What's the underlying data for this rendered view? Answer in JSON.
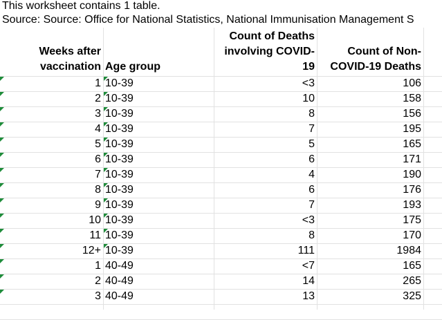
{
  "note": "This worksheet contains 1 table.",
  "source": "Source: Source: Office for National Statistics, National Immunisation Management S",
  "table": {
    "columns": [
      "Weeks after vaccination",
      "Age group",
      "Count of Deaths involving COVID-19",
      "Count of Non-COVID-19 Deaths"
    ],
    "rows": [
      [
        "1",
        "10-39",
        "<3",
        "106"
      ],
      [
        "2",
        "10-39",
        "10",
        "158"
      ],
      [
        "3",
        "10-39",
        "8",
        "156"
      ],
      [
        "4",
        "10-39",
        "7",
        "195"
      ],
      [
        "5",
        "10-39",
        "5",
        "165"
      ],
      [
        "6",
        "10-39",
        "6",
        "171"
      ],
      [
        "7",
        "10-39",
        "4",
        "190"
      ],
      [
        "8",
        "10-39",
        "6",
        "176"
      ],
      [
        "9",
        "10-39",
        "7",
        "193"
      ],
      [
        "10",
        "10-39",
        "<3",
        "175"
      ],
      [
        "11",
        "10-39",
        "8",
        "170"
      ],
      [
        "12+",
        "10-39",
        "111",
        "1984"
      ],
      [
        "1",
        "40-49",
        "<7",
        "165"
      ],
      [
        "2",
        "40-49",
        "14",
        "265"
      ],
      [
        "3",
        "40-49",
        "13",
        "325"
      ]
    ]
  }
}
